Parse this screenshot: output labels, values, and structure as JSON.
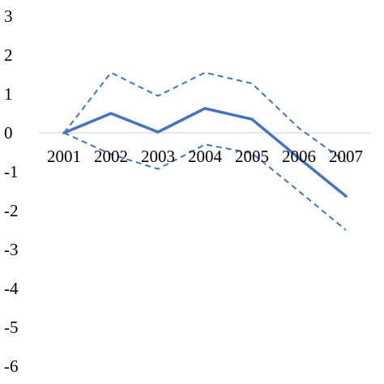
{
  "chart_data": {
    "type": "line",
    "title": "",
    "xlabel": "",
    "ylabel": "",
    "x": [
      "2001",
      "2002",
      "2003",
      "2004",
      "2005",
      "2006",
      "2007"
    ],
    "ylim": [
      -6,
      3
    ],
    "yticks": [
      3,
      2,
      1,
      0,
      -1,
      -2,
      -3,
      -4,
      -5,
      -6
    ],
    "ytick_labels": [
      "3",
      "2",
      "1",
      "0",
      "-1",
      "-2",
      "-3",
      "-4",
      "-5",
      "-6"
    ],
    "grid": false,
    "zero_line": true,
    "legend": "none",
    "series": [
      {
        "style": "solid",
        "color": "#4472C4",
        "values": [
          0,
          0.5,
          0.02,
          0.63,
          0.35,
          -0.65,
          -1.63
        ]
      },
      {
        "style": "dashed",
        "color": "#4472C4",
        "values": [
          0,
          1.55,
          0.95,
          1.55,
          1.27,
          0.12,
          -0.75
        ]
      },
      {
        "style": "dashed",
        "color": "#4472C4",
        "values": [
          0,
          -0.55,
          -0.93,
          -0.3,
          -0.52,
          -1.5,
          -2.5
        ]
      }
    ]
  }
}
